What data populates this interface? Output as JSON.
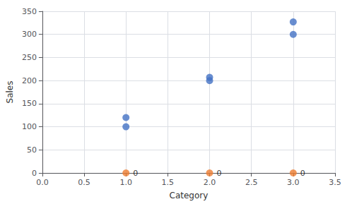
{
  "chart_data": {
    "type": "scatter",
    "xlabel": "Category",
    "ylabel": "Sales",
    "series": [
      {
        "color": "#4472C4",
        "x": [
          1,
          1,
          2,
          2,
          3,
          3
        ],
        "values": [
          120,
          100,
          207,
          200,
          327,
          300
        ]
      },
      {
        "color": "#ED7D31",
        "x": [
          1,
          2,
          3
        ],
        "values": [
          0,
          0,
          0
        ],
        "data_labels": true
      }
    ],
    "xlim": [
      0,
      3.5
    ],
    "xticks": [
      {
        "value": 0,
        "label": "0.0"
      },
      0.5,
      {
        "value": 1,
        "label": "1.0"
      },
      1.5,
      {
        "value": 2,
        "label": "2.0"
      },
      2.5,
      {
        "value": 3,
        "label": "3.0"
      },
      3.5
    ],
    "ylim": [
      0,
      350
    ],
    "yticks": [
      0,
      50,
      100,
      150,
      200,
      250,
      300,
      350
    ],
    "grid": true
  }
}
